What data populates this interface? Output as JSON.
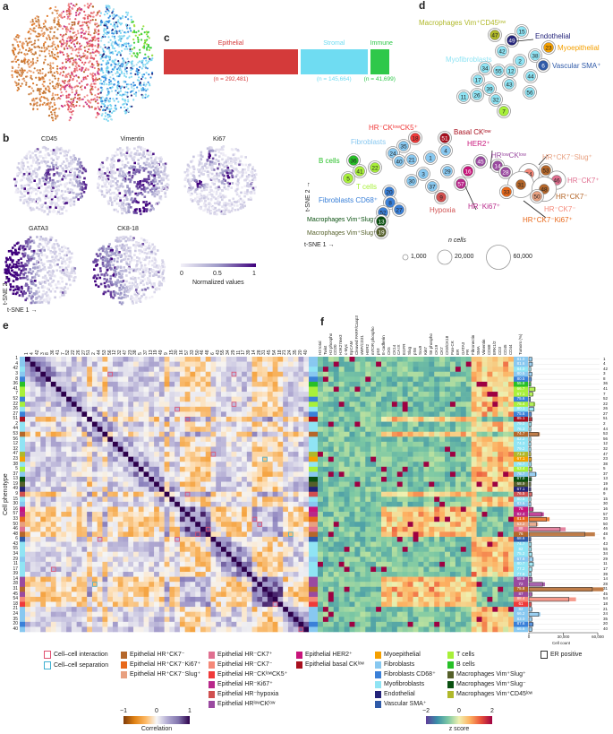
{
  "panels": {
    "a": "a",
    "b": "b",
    "c": "c",
    "d": "d",
    "e": "e",
    "f": "f"
  },
  "colors": {
    "hr_pos_ck7_neg": "#b5672a",
    "hr_pos_ck7_neg_ki67": "#e8681a",
    "hr_pos_ck7_neg_slug": "#e8a080",
    "hr_neg_ck7_pos": "#e07090",
    "hr_neg_ck7_neg": "#f58878",
    "hr_neg_cklow_ck5": "#f03a3a",
    "hr_neg_ki67": "#b8288a",
    "hr_neg_hypoxia": "#d05050",
    "hrlow_cklow": "#9a4aa0",
    "her2": "#c8147a",
    "basal": "#a80f1e",
    "myoepi": "#f5a000",
    "fibro": "#88c8f0",
    "fibro_cd68": "#3a80d8",
    "myofibro": "#90e4f4",
    "endo": "#23237a",
    "vasc": "#2f5aa8",
    "t": "#a8f03a",
    "b": "#28c028",
    "mac_slug_pos": "#55602a",
    "mac_slug_neg": "#0a5010",
    "mac_cd45low": "#b0b82a"
  },
  "panel_b": {
    "markers": [
      "CD45",
      "Vimentin",
      "Ki67",
      "GATA3",
      "CK8-18"
    ],
    "colorbar": {
      "ticks": [
        "0",
        "0.5",
        "1"
      ],
      "label": "Normalized values",
      "low": "#f2f0f8",
      "high": "#3f007d"
    },
    "xaxis": "t-SNE 1 →",
    "yaxis": "t-SNE 2 →"
  },
  "panel_c": {
    "segments": [
      {
        "label": "Epithelial",
        "n_text": "(n = 292,481)",
        "n": 292481,
        "color": "#d43a3a"
      },
      {
        "label": "Stromal",
        "n_text": "(n = 145,664)",
        "n": 145664,
        "color": "#6fdcf2"
      },
      {
        "label": "Immune",
        "n_text": "(n = 41,699)",
        "n": 41699,
        "color": "#2fc84a"
      }
    ]
  },
  "panel_d": {
    "xaxis": "t-SNE 1 →",
    "yaxis": "t-SNE 2 →",
    "size_legend": {
      "title": "n cells",
      "sizes": [
        {
          "label": "1,000",
          "n": 1000
        },
        {
          "label": "20,000",
          "n": 20000
        },
        {
          "label": "60,000",
          "n": 60000
        }
      ]
    },
    "group_labels": [
      {
        "text": "Macrophages Vim⁺CD45ˡᵒʷ",
        "type": "mac_cd45low"
      },
      {
        "text": "Endothelial",
        "type": "endo"
      },
      {
        "text": "Myoepithelial",
        "type": "myoepi"
      },
      {
        "text": "Myofibroblasts",
        "type": "myofibro"
      },
      {
        "text": "Vascular SMA⁺",
        "type": "vasc"
      },
      {
        "text": "HR⁻CKˡᵒʷCK5⁺",
        "type": "hr_neg_cklow_ck5"
      },
      {
        "text": "Basal CKˡᵒʷ",
        "type": "basal"
      },
      {
        "text": "HER2⁺",
        "type": "her2"
      },
      {
        "text": "Fibroblasts",
        "type": "fibro"
      },
      {
        "text": "B cells",
        "type": "b"
      },
      {
        "text": "T cells",
        "type": "t"
      },
      {
        "text": "HRˡᵒʷCKˡᵒʷ",
        "type": "hrlow_cklow"
      },
      {
        "text": "HR⁺CK7⁻Slug⁺",
        "type": "hr_pos_ck7_neg_slug"
      },
      {
        "text": "HR⁻CK7⁺",
        "type": "hr_neg_ck7_pos"
      },
      {
        "text": "HR⁺CK7⁻",
        "type": "hr_pos_ck7_neg"
      },
      {
        "text": "HR⁻CK7⁻",
        "type": "hr_neg_ck7_neg"
      },
      {
        "text": "HR⁺CK7⁻Ki67⁺",
        "type": "hr_pos_ck7_neg_ki67"
      },
      {
        "text": "HR⁻Ki67⁺",
        "type": "hr_neg_ki67"
      },
      {
        "text": "Hypoxia",
        "type": "hr_neg_hypoxia"
      },
      {
        "text": "Fibroblasts CD68⁺",
        "type": "fibro_cd68"
      },
      {
        "text": "Macrophages Vim⁺Slug⁻",
        "type": "mac_slug_neg"
      },
      {
        "text": "Macrophages Vim⁺Slug⁺",
        "type": "mac_slug_pos"
      }
    ],
    "clusters": [
      {
        "id": "47",
        "type": "mac_cd45low"
      },
      {
        "id": "15",
        "type": "myofibro"
      },
      {
        "id": "49",
        "type": "endo"
      },
      {
        "id": "42",
        "type": "myofibro"
      },
      {
        "id": "23",
        "type": "myoepi"
      },
      {
        "id": "38",
        "type": "myofibro"
      },
      {
        "id": "2",
        "type": "myofibro"
      },
      {
        "id": "6",
        "type": "vasc"
      },
      {
        "id": "34",
        "type": "myofibro"
      },
      {
        "id": "55",
        "type": "myofibro"
      },
      {
        "id": "12",
        "type": "myofibro"
      },
      {
        "id": "44",
        "type": "myofibro"
      },
      {
        "id": "17",
        "type": "myofibro"
      },
      {
        "id": "43",
        "type": "myofibro"
      },
      {
        "id": "39",
        "type": "myofibro"
      },
      {
        "id": "56",
        "type": "myofibro"
      },
      {
        "id": "11",
        "type": "myofibro"
      },
      {
        "id": "26",
        "type": "myofibro"
      },
      {
        "id": "32",
        "type": "myofibro"
      },
      {
        "id": "7",
        "type": "t"
      },
      {
        "id": "18",
        "type": "hr_neg_cklow_ck5"
      },
      {
        "id": "51",
        "type": "basal"
      },
      {
        "id": "35",
        "type": "fibro"
      },
      {
        "id": "24",
        "type": "fibro"
      },
      {
        "id": "40",
        "type": "fibro"
      },
      {
        "id": "21",
        "type": "fibro"
      },
      {
        "id": "1",
        "type": "fibro"
      },
      {
        "id": "4",
        "type": "fibro"
      },
      {
        "id": "36",
        "type": "b"
      },
      {
        "id": "41",
        "type": "t"
      },
      {
        "id": "22",
        "type": "t"
      },
      {
        "id": "5",
        "type": "t"
      },
      {
        "id": "3",
        "type": "fibro"
      },
      {
        "id": "30",
        "type": "fibro"
      },
      {
        "id": "29",
        "type": "fibro"
      },
      {
        "id": "16",
        "type": "her2"
      },
      {
        "id": "45",
        "type": "hrlow_cklow"
      },
      {
        "id": "14",
        "type": "hrlow_cklow"
      },
      {
        "id": "28",
        "type": "hrlow_cklow"
      },
      {
        "id": "54",
        "type": "hr_neg_ck7_neg"
      },
      {
        "id": "53",
        "type": "hr_pos_ck7_neg"
      },
      {
        "id": "46",
        "type": "hr_neg_ck7_pos"
      },
      {
        "id": "31",
        "type": "hr_pos_ck7_neg"
      },
      {
        "id": "48",
        "type": "hr_pos_ck7_neg"
      },
      {
        "id": "33",
        "type": "hr_pos_ck7_neg_ki67"
      },
      {
        "id": "50",
        "type": "hr_pos_ck7_neg_slug"
      },
      {
        "id": "57",
        "type": "hr_neg_ki67"
      },
      {
        "id": "37",
        "type": "fibro"
      },
      {
        "id": "9",
        "type": "hr_neg_hypoxia"
      },
      {
        "id": "20",
        "type": "fibro_cd68"
      },
      {
        "id": "8",
        "type": "fibro_cd68"
      },
      {
        "id": "27",
        "type": "fibro_cd68"
      },
      {
        "id": "52",
        "type": "fibro_cd68"
      },
      {
        "id": "13",
        "type": "mac_slug_neg"
      },
      {
        "id": "19",
        "type": "mac_slug_pos"
      }
    ]
  },
  "panel_e": {
    "ylabel": "Cell phenotype"
  },
  "panel_f": {
    "markers": [
      "H3 total",
      "Twist",
      "H3 phospho",
      "CD20",
      "H3K27me3",
      "c-Myc",
      "EpCAM",
      "Cleaved PARP/Casp3",
      "vWF/CD31",
      "HER2",
      "mTOR phospho",
      "p53",
      "E-cadherin",
      "CK5",
      "CK14",
      "CA IX",
      "EGFR",
      "Slug",
      "pS6",
      "Sox9",
      "Ki67",
      "S6 phospho",
      "CK19",
      "CK7",
      "CK8/CK18",
      "Pan-CK",
      "ER",
      "GATA3",
      "PR",
      "Fibronectin",
      "SMA",
      "Vimentin",
      "CD68",
      "ERK1/2",
      "CD3",
      "CD45",
      "CD44"
    ],
    "tumors_header": "Tumors (%)",
    "count_axis": {
      "ticks": [
        "0",
        "30,000",
        "60,000"
      ],
      "values": [
        0,
        30000,
        60000
      ],
      "label": "Cell count"
    }
  },
  "rows": [
    {
      "id": "1",
      "type": "fibro",
      "tumors_pct": "81.0",
      "count": 3000
    },
    {
      "id": "4",
      "type": "fibro",
      "tumors_pct": "81.6",
      "count": 3500
    },
    {
      "id": "42",
      "type": "myofibro",
      "tumors_pct": "84.0",
      "count": 2000
    },
    {
      "id": "3",
      "type": "fibro",
      "tumors_pct": "80.5",
      "count": 3000
    },
    {
      "id": "8",
      "type": "fibro_cd68",
      "tumors_pct": "80.5",
      "count": 2500
    },
    {
      "id": "36",
      "type": "b",
      "tumors_pct": "55.8",
      "count": 2000
    },
    {
      "id": "41",
      "type": "t",
      "tumors_pct": "66.7",
      "count": 6000
    },
    {
      "id": "7",
      "type": "t",
      "tumors_pct": "67.1",
      "count": 4000
    },
    {
      "id": "52",
      "type": "fibro_cd68",
      "tumors_pct": "75.6",
      "count": 1500
    },
    {
      "id": "22",
      "type": "t",
      "tumors_pct": "75.4",
      "count": 5500
    },
    {
      "id": "26",
      "type": "myofibro",
      "tumors_pct": "80.1",
      "count": 5000
    },
    {
      "id": "27",
      "type": "fibro_cd68",
      "tumors_pct": "75.6",
      "count": 2500
    },
    {
      "id": "51",
      "type": "basal",
      "tumors_pct": "85.1",
      "count": 3000
    },
    {
      "id": "2",
      "type": "myofibro",
      "tumors_pct": "79.0",
      "count": 2500
    },
    {
      "id": "44",
      "type": "myofibro",
      "tumors_pct": "76.3",
      "count": 2000
    },
    {
      "id": "53",
      "type": "hr_pos_ck7_neg",
      "tumors_pct": "74.7",
      "count": 9500
    },
    {
      "id": "56",
      "type": "myofibro",
      "tumors_pct": "82.2",
      "count": 2000
    },
    {
      "id": "12",
      "type": "myofibro",
      "tumors_pct": "74.3",
      "count": 2000
    },
    {
      "id": "32",
      "type": "myofibro",
      "tumors_pct": "79.2",
      "count": 2000
    },
    {
      "id": "47",
      "type": "mac_cd45low",
      "tumors_pct": "71.2",
      "count": 2000
    },
    {
      "id": "23",
      "type": "myoepi",
      "tumors_pct": "67.1",
      "count": 2500
    },
    {
      "id": "38",
      "type": "myofibro",
      "tumors_pct": "78.7",
      "count": 2500
    },
    {
      "id": "5",
      "type": "t",
      "tumors_pct": "63.4",
      "count": 3000
    },
    {
      "id": "37",
      "type": "fibro",
      "tumors_pct": "78.7",
      "count": 7000
    },
    {
      "id": "13",
      "type": "mac_slug_neg",
      "tumors_pct": "67.0",
      "count": 2500
    },
    {
      "id": "19",
      "type": "mac_slug_pos",
      "tumors_pct": "68.9",
      "count": 2000
    },
    {
      "id": "49",
      "type": "endo",
      "tumors_pct": "67.1",
      "count": 2000
    },
    {
      "id": "9",
      "type": "hr_neg_hypoxia",
      "tumors_pct": "76.5",
      "count": 3000
    },
    {
      "id": "15",
      "type": "myofibro",
      "tumors_pct": "80.5",
      "count": 2000
    },
    {
      "id": "30",
      "type": "fibro",
      "tumors_pct": "83.6",
      "count": 2000
    },
    {
      "id": "16",
      "type": "her2",
      "tumors_pct": "76",
      "count": 4000
    },
    {
      "id": "57",
      "type": "hr_neg_ki67",
      "tumors_pct": "82.4",
      "count": 13000
    },
    {
      "id": "33",
      "type": "hr_pos_ck7_neg_ki67",
      "tumors_pct": "81.6",
      "count": 18000
    },
    {
      "id": "50",
      "type": "hr_pos_ck7_neg_slug",
      "tumors_pct": "53.2",
      "count": 8000
    },
    {
      "id": "46",
      "type": "hr_neg_ck7_pos",
      "tumors_pct": "88",
      "count": 32000
    },
    {
      "id": "48",
      "type": "hr_pos_ck7_neg",
      "tumors_pct": "76",
      "count": 57500
    },
    {
      "id": "6",
      "type": "vasc",
      "tumors_pct": "68.6",
      "count": 2000
    },
    {
      "id": "43",
      "type": "myofibro",
      "tumors_pct": "74.7",
      "count": 2500
    },
    {
      "id": "55",
      "type": "myofibro",
      "tumors_pct": "82",
      "count": 2500
    },
    {
      "id": "34",
      "type": "myofibro",
      "tumors_pct": "75.2",
      "count": 3000
    },
    {
      "id": "29",
      "type": "fibro",
      "tumors_pct": "67.8",
      "count": 4000
    },
    {
      "id": "11",
      "type": "myofibro",
      "tumors_pct": "80.7",
      "count": 4500
    },
    {
      "id": "17",
      "type": "myofibro",
      "tumors_pct": "77.2",
      "count": 3000
    },
    {
      "id": "39",
      "type": "myofibro",
      "tumors_pct": "77.8",
      "count": 2500
    },
    {
      "id": "14",
      "type": "hrlow_cklow",
      "tumors_pct": "68.9",
      "count": 3000
    },
    {
      "id": "28",
      "type": "hrlow_cklow",
      "tumors_pct": "72",
      "count": 14000
    },
    {
      "id": "31",
      "type": "hr_pos_ck7_neg",
      "tumors_pct": "75.8",
      "count": 65000
    },
    {
      "id": "45",
      "type": "hrlow_cklow",
      "tumors_pct": "87",
      "count": 3000
    },
    {
      "id": "54",
      "type": "hr_neg_ck7_neg",
      "tumors_pct": "88.4",
      "count": 41000
    },
    {
      "id": "18",
      "type": "hr_neg_cklow_ck5",
      "tumors_pct": "61",
      "count": 2500
    },
    {
      "id": "21",
      "type": "fibro",
      "tumors_pct": "82",
      "count": 3000
    },
    {
      "id": "24",
      "type": "fibro",
      "tumors_pct": "66.2",
      "count": 10000
    },
    {
      "id": "35",
      "type": "fibro",
      "tumors_pct": "83.0",
      "count": 3000
    },
    {
      "id": "20",
      "type": "fibro_cd68",
      "tumors_pct": "87.6",
      "count": 4000
    },
    {
      "id": "40",
      "type": "fibro",
      "tumors_pct": "66.6",
      "count": 3000
    }
  ],
  "legend": {
    "interaction": {
      "label": "Cell–cell interaction",
      "color": "#e05070"
    },
    "separation": {
      "label": "Cell–cell separation",
      "color": "#40b0d0"
    },
    "er_positive": "ER positive",
    "columns": [
      [
        {
          "label": "Epithelial HR⁺CK7⁻",
          "type": "hr_pos_ck7_neg"
        },
        {
          "label": "Epithelial HR⁺CK7⁻Ki67⁺",
          "type": "hr_pos_ck7_neg_ki67"
        },
        {
          "label": "Epithelial HR⁺CK7⁻Slug⁺",
          "type": "hr_pos_ck7_neg_slug"
        }
      ],
      [
        {
          "label": "Epithelial HR⁻CK7⁺",
          "type": "hr_neg_ck7_pos"
        },
        {
          "label": "Epithelial HR⁻CK7⁻",
          "type": "hr_neg_ck7_neg"
        },
        {
          "label": "Epithelial HR⁻CKˡᵒʷCK5⁺",
          "type": "hr_neg_cklow_ck5"
        },
        {
          "label": "Epithelial HR⁻Ki67⁺",
          "type": "hr_neg_ki67"
        },
        {
          "label": "Epithelial HR⁻hypoxia",
          "type": "hr_neg_hypoxia"
        },
        {
          "label": "Epithelial HRˡᵒʷCKˡᵒʷ",
          "type": "hrlow_cklow"
        }
      ],
      [
        {
          "label": "Epithelial HER2⁺",
          "type": "her2"
        },
        {
          "label": "Epithelial basal CKˡᵒʷ",
          "type": "basal"
        }
      ],
      [
        {
          "label": "Myoepithelial",
          "type": "myoepi"
        },
        {
          "label": "Fibroblasts",
          "type": "fibro"
        },
        {
          "label": "Fibroblasts CD68⁺",
          "type": "fibro_cd68"
        },
        {
          "label": "Myofibroblasts",
          "type": "myofibro"
        },
        {
          "label": "Endothelial",
          "type": "endo"
        },
        {
          "label": "Vascular SMA⁺",
          "type": "vasc"
        }
      ],
      [
        {
          "label": "T cells",
          "type": "t"
        },
        {
          "label": "B cells",
          "type": "b"
        },
        {
          "label": "Macrophages Vim⁺Slug⁺",
          "type": "mac_slug_pos"
        },
        {
          "label": "Macrophages Vim⁺Slug⁻",
          "type": "mac_slug_neg"
        },
        {
          "label": "Macrophages Vim⁺CD45ˡᵒʷ",
          "type": "mac_cd45low"
        }
      ]
    ],
    "correlation_bar": {
      "ticks": [
        "−1",
        "0",
        "1"
      ],
      "label": "Correlation"
    },
    "zscore_bar": {
      "ticks": [
        "−2",
        "0",
        "2"
      ],
      "label": "z score"
    }
  }
}
